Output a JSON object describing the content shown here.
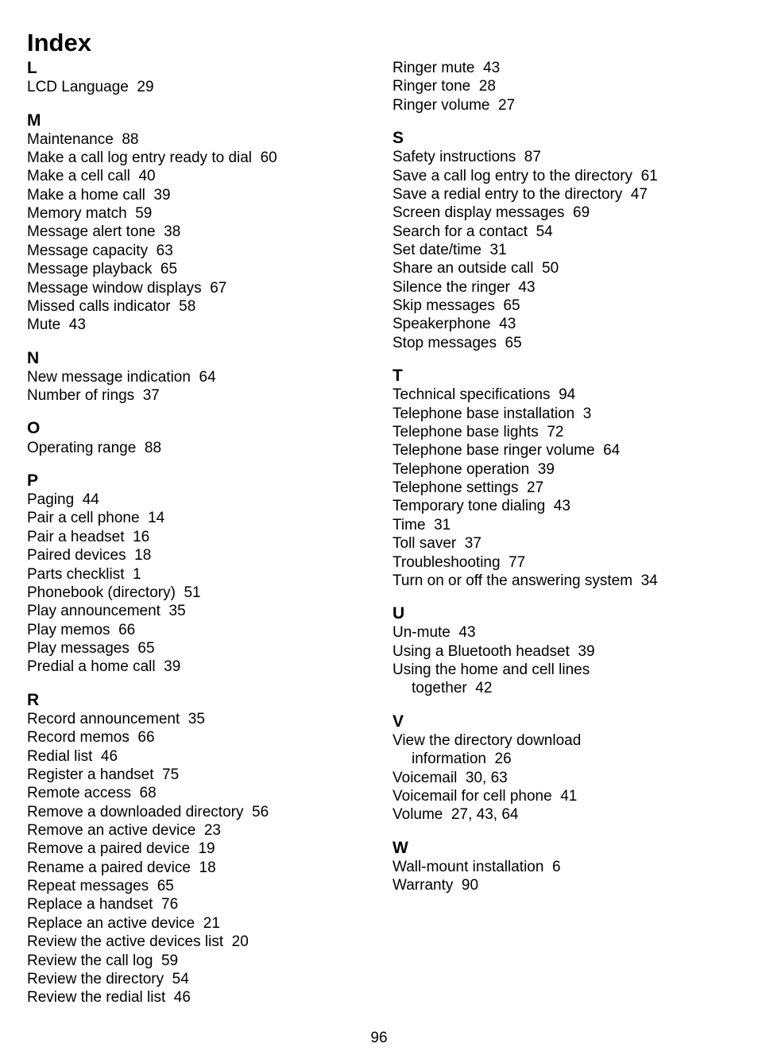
{
  "heading": "Index",
  "page_number": "96",
  "left": [
    {
      "letter": "L",
      "entries": [
        {
          "t": "LCD Language  29"
        }
      ]
    },
    {
      "letter": "M",
      "entries": [
        {
          "t": "Maintenance  88"
        },
        {
          "t": "Make a call log entry ready to dial  60"
        },
        {
          "t": "Make a cell call  40"
        },
        {
          "t": "Make a home call  39"
        },
        {
          "t": "Memory match  59"
        },
        {
          "t": "Message alert tone  38"
        },
        {
          "t": "Message capacity  63"
        },
        {
          "t": "Message playback  65"
        },
        {
          "t": "Message window displays  67"
        },
        {
          "t": "Missed calls indicator  58"
        },
        {
          "t": "Mute  43"
        }
      ]
    },
    {
      "letter": "N",
      "entries": [
        {
          "t": "New message indication  64"
        },
        {
          "t": "Number of rings  37"
        }
      ]
    },
    {
      "letter": "O",
      "entries": [
        {
          "t": "Operating range  88"
        }
      ]
    },
    {
      "letter": "P",
      "entries": [
        {
          "t": "Paging  44"
        },
        {
          "t": "Pair a cell phone  14"
        },
        {
          "t": "Pair a headset  16"
        },
        {
          "t": "Paired devices  18"
        },
        {
          "t": "Parts checklist  1"
        },
        {
          "t": "Phonebook (directory)  51"
        },
        {
          "t": "Play announcement  35"
        },
        {
          "t": "Play memos  66"
        },
        {
          "t": "Play messages  65"
        },
        {
          "t": "Predial a home call  39"
        }
      ]
    },
    {
      "letter": "R",
      "entries": [
        {
          "t": "Record announcement  35"
        },
        {
          "t": "Record memos  66"
        },
        {
          "t": "Redial list  46"
        },
        {
          "t": "Register a handset  75"
        },
        {
          "t": "Remote access  68"
        },
        {
          "t": "Remove a downloaded directory  56"
        },
        {
          "t": "Remove an active device  23"
        },
        {
          "t": "Remove a paired device  19"
        },
        {
          "t": "Rename a paired device  18"
        },
        {
          "t": "Repeat messages  65"
        },
        {
          "t": "Replace a handset  76"
        },
        {
          "t": "Replace an active device  21"
        },
        {
          "t": "Review the active devices list  20"
        },
        {
          "t": "Review the call log  59"
        },
        {
          "t": "Review the directory  54"
        },
        {
          "t": "Review the redial list  46"
        }
      ]
    }
  ],
  "right": [
    {
      "letter": "",
      "entries": [
        {
          "t": "Ringer mute  43"
        },
        {
          "t": "Ringer tone  28"
        },
        {
          "t": "Ringer volume  27"
        }
      ]
    },
    {
      "letter": "S",
      "entries": [
        {
          "t": "Safety instructions  87"
        },
        {
          "t": "Save a call log entry to the directory  61"
        },
        {
          "t": "Save a redial entry to the directory  47"
        },
        {
          "t": "Screen display messages  69"
        },
        {
          "t": "Search for a contact  54"
        },
        {
          "t": "Set date/time  31"
        },
        {
          "t": "Share an outside call  50"
        },
        {
          "t": "Silence the ringer  43"
        },
        {
          "t": "Skip messages  65"
        },
        {
          "t": "Speakerphone  43"
        },
        {
          "t": "Stop messages  65"
        }
      ]
    },
    {
      "letter": "T",
      "entries": [
        {
          "t": "Technical specifications  94"
        },
        {
          "t": "Telephone base installation  3"
        },
        {
          "t": "Telephone base lights  72"
        },
        {
          "t": "Telephone base ringer volume  64"
        },
        {
          "t": "Telephone operation  39"
        },
        {
          "t": "Telephone settings  27"
        },
        {
          "t": "Temporary tone dialing  43"
        },
        {
          "t": "Time  31"
        },
        {
          "t": "Toll saver  37"
        },
        {
          "t": "Troubleshooting  77"
        },
        {
          "t": "Turn on or off the answering system  34"
        }
      ]
    },
    {
      "letter": "U",
      "entries": [
        {
          "t": "Un-mute  43"
        },
        {
          "t": "Using a Bluetooth headset  39"
        },
        {
          "t": "Using the home and cell lines"
        },
        {
          "t": "together  42",
          "sub": true
        }
      ]
    },
    {
      "letter": "V",
      "entries": [
        {
          "t": "View the directory download"
        },
        {
          "t": "information  26",
          "sub": true
        },
        {
          "t": "Voicemail  30, 63"
        },
        {
          "t": "Voicemail for cell phone  41"
        },
        {
          "t": "Volume  27, 43, 64"
        }
      ]
    },
    {
      "letter": "W",
      "entries": [
        {
          "t": "Wall-mount installation  6"
        },
        {
          "t": "Warranty  90"
        }
      ]
    }
  ]
}
